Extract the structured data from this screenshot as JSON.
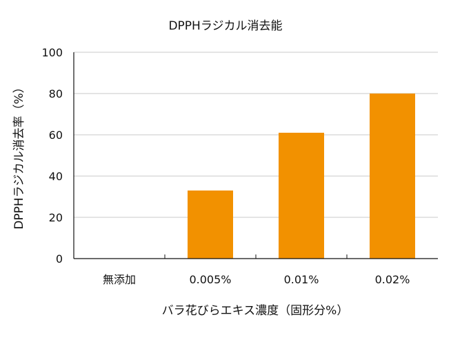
{
  "chart_data": {
    "type": "bar",
    "title": "DPPHラジカル消去能",
    "xlabel": "バラ花びらエキス濃度（固形分%）",
    "ylabel": "DPPHラジカル消去率（%）",
    "categories": [
      "無添加",
      "0.005%",
      "0.01%",
      "0.02%"
    ],
    "values": [
      0,
      33,
      61,
      80
    ],
    "ylim": [
      0,
      100
    ],
    "yticks": [
      0,
      20,
      40,
      60,
      80,
      100
    ],
    "grid": true,
    "legend": "none",
    "colors": {
      "bar": "#f29100",
      "grid": "#c8c8c8",
      "axis": "#111111"
    }
  }
}
